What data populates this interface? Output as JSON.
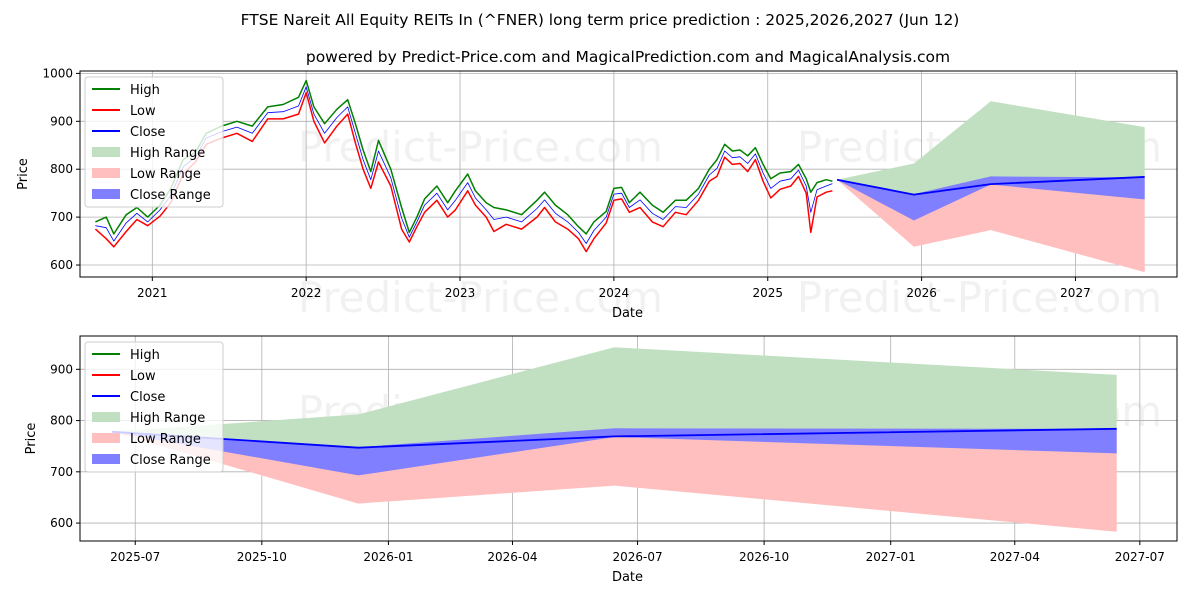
{
  "title": "FTSE Nareit All Equity REITs In (^FNER) long term price prediction : 2025,2026,2027 (Jun 12)",
  "subtitle": "powered by Predict-Price.com and MagicalPrediction.com and MagicalAnalysis.com",
  "watermark": "Predict-Price.com",
  "colors": {
    "high": "#008000",
    "low": "#ff0000",
    "close": "#0000ff",
    "high_range": "#c1e0c1",
    "low_range": "#ffbfbf",
    "close_range": "#7f7fff",
    "grid": "#b0b0b0"
  },
  "chart_data": [
    {
      "type": "line",
      "name": "top-panel",
      "xlabel": "Date",
      "ylabel": "Price",
      "xlim": [
        2020.53,
        2027.66
      ],
      "ylim": [
        575,
        1005
      ],
      "grid": true,
      "legend_position": "upper-left",
      "x_ticks": [
        {
          "value": 2021,
          "label": "2021"
        },
        {
          "value": 2022,
          "label": "2022"
        },
        {
          "value": 2023,
          "label": "2023"
        },
        {
          "value": 2024,
          "label": "2024"
        },
        {
          "value": 2025,
          "label": "2025"
        },
        {
          "value": 2026,
          "label": "2026"
        },
        {
          "value": 2027,
          "label": "2027"
        }
      ],
      "y_ticks": [
        {
          "value": 600,
          "label": "600"
        },
        {
          "value": 700,
          "label": "700"
        },
        {
          "value": 800,
          "label": "800"
        },
        {
          "value": 900,
          "label": "900"
        },
        {
          "value": 1000,
          "label": "1000"
        }
      ],
      "legend": [
        "High",
        "Low",
        "Close",
        "High Range",
        "Low Range",
        "Close Range"
      ],
      "history": {
        "x": [
          2020.63,
          2020.7,
          2020.75,
          2020.83,
          2020.9,
          2020.97,
          2021.05,
          2021.12,
          2021.2,
          2021.28,
          2021.35,
          2021.45,
          2021.55,
          2021.65,
          2021.75,
          2021.85,
          2021.95,
          2022.0,
          2022.05,
          2022.12,
          2022.2,
          2022.27,
          2022.32,
          2022.37,
          2022.42,
          2022.47,
          2022.55,
          2022.62,
          2022.67,
          2022.72,
          2022.77,
          2022.85,
          2022.92,
          2022.97,
          2023.05,
          2023.1,
          2023.17,
          2023.22,
          2023.3,
          2023.4,
          2023.5,
          2023.55,
          2023.62,
          2023.7,
          2023.77,
          2023.82,
          2023.87,
          2023.95,
          2024.0,
          2024.05,
          2024.1,
          2024.17,
          2024.25,
          2024.32,
          2024.4,
          2024.47,
          2024.55,
          2024.62,
          2024.67,
          2024.72,
          2024.77,
          2024.82,
          2024.87,
          2024.92,
          2024.97,
          2025.02,
          2025.08,
          2025.15,
          2025.2,
          2025.25,
          2025.28,
          2025.32,
          2025.38,
          2025.42
        ],
        "high": [
          690,
          700,
          665,
          705,
          720,
          700,
          725,
          760,
          820,
          835,
          875,
          890,
          900,
          890,
          930,
          935,
          950,
          985,
          930,
          895,
          925,
          945,
          895,
          840,
          795,
          860,
          800,
          720,
          668,
          700,
          738,
          765,
          730,
          755,
          790,
          755,
          730,
          720,
          715,
          705,
          735,
          752,
          725,
          705,
          680,
          665,
          690,
          712,
          760,
          762,
          730,
          752,
          725,
          710,
          735,
          735,
          760,
          800,
          820,
          852,
          838,
          840,
          828,
          845,
          810,
          780,
          792,
          795,
          810,
          780,
          752,
          772,
          778,
          775
        ],
        "low": [
          675,
          655,
          638,
          670,
          695,
          682,
          702,
          730,
          790,
          815,
          852,
          865,
          875,
          858,
          905,
          905,
          915,
          960,
          900,
          855,
          890,
          915,
          855,
          800,
          760,
          815,
          765,
          675,
          648,
          680,
          710,
          735,
          700,
          715,
          755,
          725,
          700,
          670,
          685,
          675,
          700,
          720,
          690,
          675,
          655,
          628,
          655,
          688,
          735,
          738,
          710,
          720,
          690,
          680,
          710,
          705,
          735,
          775,
          785,
          825,
          810,
          812,
          795,
          820,
          775,
          740,
          758,
          765,
          785,
          750,
          668,
          742,
          752,
          755
        ],
        "close": [
          682,
          678,
          650,
          688,
          708,
          690,
          715,
          745,
          805,
          825,
          865,
          878,
          888,
          875,
          918,
          920,
          932,
          972,
          915,
          875,
          908,
          930,
          875,
          820,
          778,
          838,
          782,
          698,
          658,
          690,
          725,
          750,
          715,
          735,
          772,
          740,
          715,
          695,
          700,
          690,
          718,
          736,
          708,
          690,
          668,
          645,
          672,
          700,
          748,
          750,
          720,
          736,
          708,
          695,
          722,
          720,
          748,
          788,
          802,
          838,
          824,
          826,
          812,
          832,
          792,
          760,
          775,
          780,
          798,
          765,
          710,
          757,
          765,
          770
        ]
      },
      "prediction": {
        "x": [
          2025.45,
          2025.95,
          2026.45,
          2027.45
        ],
        "high_range_upper": [
          778,
          812,
          942,
          888
        ],
        "close_range_upper": [
          778,
          748,
          785,
          783
        ],
        "close_range_lower": [
          778,
          693,
          768,
          737
        ],
        "low_range_lower": [
          778,
          638,
          673,
          585
        ],
        "close": [
          778,
          747,
          769,
          784
        ]
      }
    },
    {
      "type": "line",
      "name": "bottom-panel",
      "xlabel": "Date",
      "ylabel": "Price",
      "xlim": [
        2025.386,
        2027.57
      ],
      "ylim": [
        565,
        965
      ],
      "grid": true,
      "legend_position": "upper-left",
      "x_ticks": [
        {
          "value": 2025.496,
          "label": "2025-07"
        },
        {
          "value": 2025.748,
          "label": "2025-10"
        },
        {
          "value": 2026.0,
          "label": "2026-01"
        },
        {
          "value": 2026.247,
          "label": "2026-04"
        },
        {
          "value": 2026.496,
          "label": "2026-07"
        },
        {
          "value": 2026.748,
          "label": "2026-10"
        },
        {
          "value": 2027.0,
          "label": "2027-01"
        },
        {
          "value": 2027.247,
          "label": "2027-04"
        },
        {
          "value": 2027.496,
          "label": "2027-07"
        }
      ],
      "y_ticks": [
        {
          "value": 600,
          "label": "600"
        },
        {
          "value": 700,
          "label": "700"
        },
        {
          "value": 800,
          "label": "800"
        },
        {
          "value": 900,
          "label": "900"
        }
      ],
      "legend": [
        "High",
        "Low",
        "Close",
        "High Range",
        "Low Range",
        "Close Range"
      ],
      "prediction": {
        "x": [
          2025.45,
          2025.94,
          2026.45,
          2027.45
        ],
        "high_range_upper": [
          778,
          812,
          943,
          889
        ],
        "close_range_upper": [
          778,
          748,
          785,
          784
        ],
        "close_range_lower": [
          778,
          693,
          768,
          736
        ],
        "low_range_lower": [
          778,
          638,
          673,
          583
        ],
        "close": [
          778,
          747,
          769,
          784
        ]
      }
    }
  ]
}
